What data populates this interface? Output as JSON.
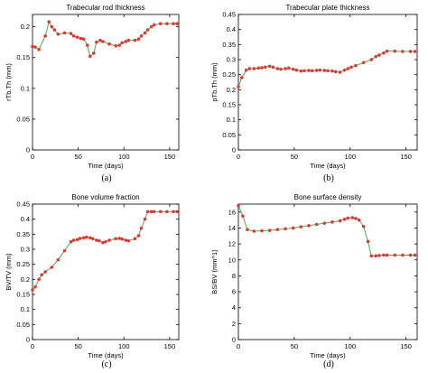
{
  "figure": {
    "line_color": "#4caf50",
    "marker_color": "#e53935"
  },
  "chart_data": [
    {
      "type": "line",
      "title": "Trabecular rod thickness",
      "xlabel": "Time (days)",
      "ylabel": "rTb.Th (mm)",
      "caption": "(a)",
      "xlim": [
        0,
        160
      ],
      "ylim": [
        0,
        0.22
      ],
      "xticks": [
        0,
        50,
        100,
        150
      ],
      "yticks": [
        0,
        0.05,
        0.1,
        0.15,
        0.2
      ],
      "ytick_labels": [
        "0",
        "0.05",
        "0.1",
        "0.15",
        "0.2"
      ],
      "x": [
        0,
        3,
        7,
        14,
        18,
        21,
        24,
        28,
        35,
        42,
        45,
        49,
        53,
        56,
        60,
        63,
        67,
        70,
        74,
        77,
        84,
        91,
        95,
        98,
        102,
        105,
        112,
        116,
        119,
        123,
        126,
        130,
        133,
        140,
        147,
        154,
        158
      ],
      "values": [
        0.168,
        0.167,
        0.163,
        0.185,
        0.208,
        0.2,
        0.195,
        0.188,
        0.19,
        0.189,
        0.185,
        0.183,
        0.181,
        0.18,
        0.17,
        0.152,
        0.157,
        0.175,
        0.178,
        0.176,
        0.172,
        0.169,
        0.17,
        0.174,
        0.176,
        0.178,
        0.178,
        0.18,
        0.185,
        0.19,
        0.195,
        0.2,
        0.203,
        0.205,
        0.205,
        0.205,
        0.205
      ]
    },
    {
      "type": "line",
      "title": "Trabecular plate thickness",
      "xlabel": "Time (days)",
      "ylabel": "pTb.Th (mm)",
      "caption": "(b)",
      "xlim": [
        0,
        160
      ],
      "ylim": [
        0,
        0.45
      ],
      "xticks": [
        0,
        50,
        100,
        150
      ],
      "yticks": [
        0,
        0.05,
        0.1,
        0.15,
        0.2,
        0.25,
        0.3,
        0.35,
        0.4,
        0.45
      ],
      "ytick_labels": [
        "0",
        "0.05",
        "0.1",
        "0.15",
        "0.2",
        "0.25",
        "0.3",
        "0.35",
        "0.4",
        "0.45"
      ],
      "x": [
        0,
        3,
        7,
        10,
        14,
        18,
        21,
        24,
        28,
        31,
        35,
        38,
        42,
        45,
        49,
        52,
        56,
        59,
        63,
        66,
        70,
        73,
        77,
        80,
        84,
        87,
        91,
        95,
        98,
        101,
        105,
        112,
        119,
        123,
        126,
        130,
        133,
        140,
        147,
        154,
        158
      ],
      "values": [
        0.21,
        0.24,
        0.265,
        0.27,
        0.27,
        0.272,
        0.273,
        0.275,
        0.278,
        0.275,
        0.27,
        0.268,
        0.27,
        0.272,
        0.268,
        0.265,
        0.262,
        0.263,
        0.264,
        0.263,
        0.264,
        0.265,
        0.264,
        0.263,
        0.262,
        0.26,
        0.258,
        0.265,
        0.27,
        0.275,
        0.28,
        0.29,
        0.3,
        0.31,
        0.315,
        0.322,
        0.328,
        0.328,
        0.327,
        0.327,
        0.327
      ]
    },
    {
      "type": "line",
      "title": "Bone volume fraction",
      "xlabel": "Time (days)",
      "ylabel": "BV/TV (mm)",
      "caption": "(c)",
      "xlim": [
        0,
        160
      ],
      "ylim": [
        0,
        0.45
      ],
      "xticks": [
        0,
        50,
        100,
        150
      ],
      "yticks": [
        0,
        0.05,
        0.1,
        0.15,
        0.2,
        0.25,
        0.3,
        0.35,
        0.4,
        0.45
      ],
      "ytick_labels": [
        "0",
        "0.05",
        "0.1",
        "0.15",
        "0.2",
        "0.25",
        "0.3",
        "0.35",
        "0.4",
        "0.45"
      ],
      "x": [
        0,
        3,
        7,
        10,
        14,
        21,
        28,
        35,
        42,
        45,
        49,
        52,
        56,
        59,
        63,
        66,
        70,
        73,
        77,
        80,
        84,
        91,
        95,
        98,
        102,
        105,
        112,
        116,
        119,
        123,
        126,
        130,
        133,
        140,
        147,
        154,
        158
      ],
      "values": [
        0.165,
        0.175,
        0.2,
        0.215,
        0.225,
        0.24,
        0.265,
        0.295,
        0.325,
        0.33,
        0.332,
        0.336,
        0.338,
        0.34,
        0.338,
        0.335,
        0.33,
        0.328,
        0.322,
        0.325,
        0.33,
        0.335,
        0.336,
        0.334,
        0.33,
        0.328,
        0.335,
        0.345,
        0.37,
        0.4,
        0.425,
        0.425,
        0.425,
        0.425,
        0.425,
        0.425,
        0.425
      ]
    },
    {
      "type": "line",
      "title": "Bone surface density",
      "xlabel": "Time (days)",
      "ylabel": "BS/BV (mm^1)",
      "caption": "(d)",
      "xlim": [
        0,
        160
      ],
      "ylim": [
        0,
        17
      ],
      "xticks": [
        0,
        50,
        100,
        150
      ],
      "yticks": [
        0,
        2,
        4,
        6,
        8,
        10,
        12,
        14,
        16
      ],
      "ytick_labels": [
        "0",
        "2",
        "4",
        "6",
        "8",
        "10",
        "12",
        "14",
        "16"
      ],
      "x": [
        0,
        4,
        8,
        14,
        21,
        28,
        35,
        42,
        49,
        56,
        63,
        70,
        77,
        84,
        91,
        95,
        98,
        102,
        105,
        108,
        112,
        116,
        119,
        123,
        126,
        130,
        133,
        140,
        147,
        154,
        158
      ],
      "values": [
        16.8,
        15.5,
        13.8,
        13.6,
        13.65,
        13.7,
        13.8,
        13.9,
        14.0,
        14.15,
        14.3,
        14.45,
        14.6,
        14.75,
        14.9,
        15.1,
        15.25,
        15.3,
        15.2,
        15.0,
        14.2,
        12.3,
        10.5,
        10.5,
        10.55,
        10.6,
        10.6,
        10.6,
        10.6,
        10.6,
        10.6
      ]
    }
  ]
}
